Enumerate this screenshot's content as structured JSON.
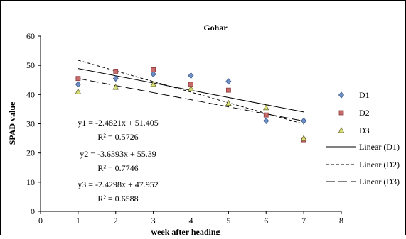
{
  "chart_data": {
    "type": "scatter",
    "title": "Gohar",
    "xlabel": "week after heading",
    "ylabel": "SPAD value",
    "xlim": [
      0,
      8
    ],
    "ylim": [
      0,
      60
    ],
    "xticks": [
      0,
      1,
      2,
      3,
      4,
      5,
      6,
      7,
      8
    ],
    "yticks": [
      0,
      10,
      20,
      30,
      40,
      50,
      60
    ],
    "grid": false,
    "legend_position": "right",
    "series": [
      {
        "name": "D1",
        "marker": "diamond",
        "color": "#6f91c8",
        "stroke": "#3b5a8c",
        "x": [
          1,
          2,
          3,
          4,
          5,
          6,
          7
        ],
        "y": [
          43.5,
          45.5,
          47.0,
          46.5,
          44.5,
          31.0,
          31.0
        ]
      },
      {
        "name": "D2",
        "marker": "square",
        "color": "#c86b6b",
        "stroke": "#8c3b3b",
        "x": [
          1,
          2,
          3,
          4,
          5,
          6,
          7
        ],
        "y": [
          45.5,
          48.0,
          48.5,
          43.5,
          41.5,
          33.0,
          24.5
        ]
      },
      {
        "name": "D3",
        "marker": "triangle",
        "color": "#d8e07a",
        "stroke": "#6a6a2a",
        "x": [
          1,
          2,
          3,
          4,
          5,
          6,
          7
        ],
        "y": [
          41.0,
          42.5,
          43.5,
          42.0,
          37.0,
          35.5,
          25.0
        ]
      }
    ],
    "trendlines": [
      {
        "name": "Linear (D1)",
        "slope": -2.4821,
        "intercept": 51.405,
        "dash": "solid",
        "x_range": [
          1,
          7
        ]
      },
      {
        "name": "Linear (D2)",
        "slope": -3.6393,
        "intercept": 55.39,
        "dash": "short",
        "x_range": [
          1,
          7
        ]
      },
      {
        "name": "Linear (D3)",
        "slope": -2.4298,
        "intercept": 47.952,
        "dash": "long",
        "x_range": [
          1,
          7
        ]
      }
    ],
    "annotations": [
      {
        "eq": "y1 = -2.4821x + 51.405",
        "r2": "R² = 0.5726"
      },
      {
        "eq": "y2 = -3.6393x + 55.39",
        "r2": "R² = 0.7746"
      },
      {
        "eq": "y3 = -2.4298x + 47.952",
        "r2": "R² = 0.6588"
      }
    ]
  }
}
